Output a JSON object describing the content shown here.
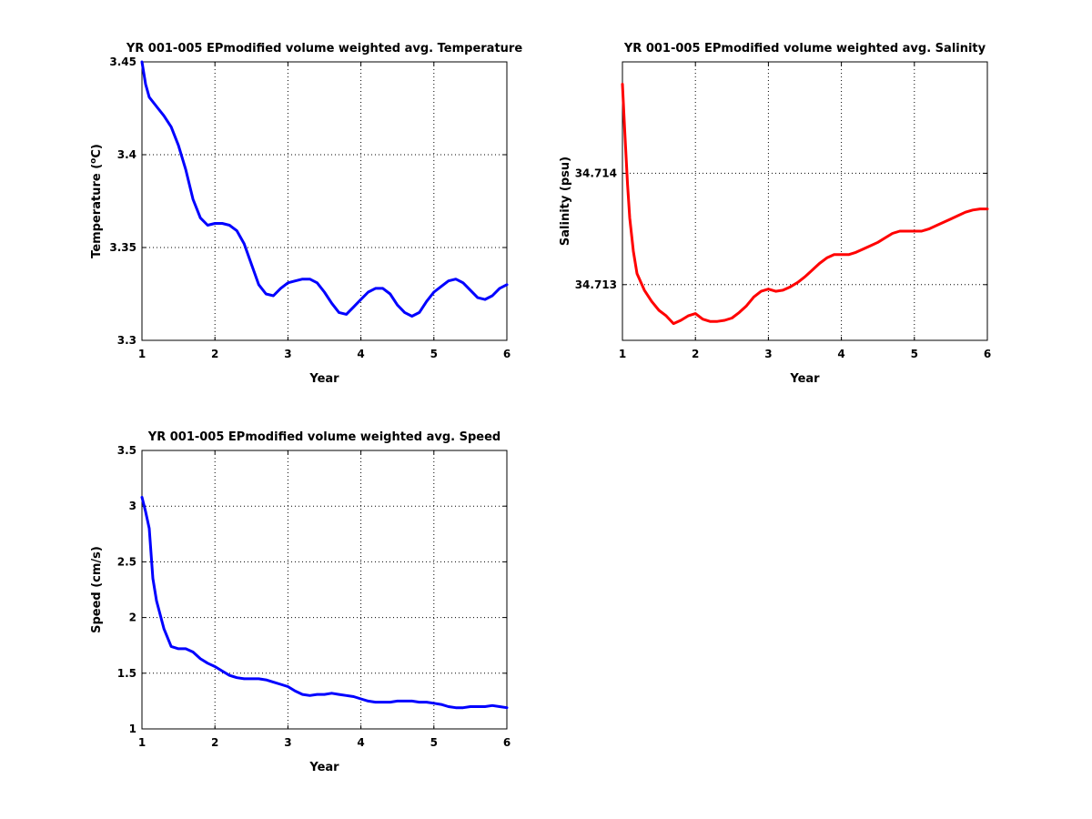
{
  "chart_data": [
    {
      "type": "line",
      "title": "YR 001-005 EPmodified volume weighted avg. Temperature",
      "xlabel": "Year",
      "ylabel": "Temperature (°C)",
      "ylabel_parts": {
        "pre": "Temperature (",
        "sup": "o",
        "post": "C)"
      },
      "xlim": [
        1,
        6
      ],
      "ylim": [
        3.3,
        3.45
      ],
      "xticks": [
        1,
        2,
        3,
        4,
        5,
        6
      ],
      "xtick_labels": [
        "1",
        "2",
        "3",
        "4",
        "5",
        "6"
      ],
      "yticks": [
        3.3,
        3.35,
        3.4,
        3.45
      ],
      "ytick_labels": [
        "3.3",
        "3.35",
        "3.4",
        "3.45"
      ],
      "grid": true,
      "series": [
        {
          "color": "#0000ff",
          "x": [
            1.0,
            1.05,
            1.1,
            1.2,
            1.3,
            1.4,
            1.5,
            1.6,
            1.7,
            1.8,
            1.9,
            2.0,
            2.1,
            2.2,
            2.3,
            2.4,
            2.5,
            2.6,
            2.7,
            2.8,
            2.9,
            3.0,
            3.1,
            3.2,
            3.3,
            3.4,
            3.5,
            3.6,
            3.7,
            3.8,
            3.9,
            4.0,
            4.1,
            4.2,
            4.3,
            4.4,
            4.5,
            4.6,
            4.7,
            4.8,
            4.9,
            5.0,
            5.1,
            5.2,
            5.3,
            5.4,
            5.5,
            5.6,
            5.7,
            5.8,
            5.9,
            6.0
          ],
          "y": [
            3.45,
            3.438,
            3.431,
            3.426,
            3.421,
            3.415,
            3.405,
            3.392,
            3.376,
            3.366,
            3.362,
            3.363,
            3.363,
            3.362,
            3.359,
            3.352,
            3.341,
            3.33,
            3.325,
            3.324,
            3.328,
            3.331,
            3.332,
            3.333,
            3.333,
            3.331,
            3.326,
            3.32,
            3.315,
            3.314,
            3.318,
            3.322,
            3.326,
            3.328,
            3.328,
            3.325,
            3.319,
            3.315,
            3.313,
            3.315,
            3.321,
            3.326,
            3.329,
            3.332,
            3.333,
            3.331,
            3.327,
            3.323,
            3.322,
            3.324,
            3.328,
            3.33
          ]
        }
      ]
    },
    {
      "type": "line",
      "title": "YR 001-005 EPmodified volume weighted avg. Salinity",
      "xlabel": "Year",
      "ylabel": "Salinity (psu)",
      "xlim": [
        1,
        6
      ],
      "ylim": [
        34.7125,
        34.715
      ],
      "xticks": [
        1,
        2,
        3,
        4,
        5,
        6
      ],
      "xtick_labels": [
        "1",
        "2",
        "3",
        "4",
        "5",
        "6"
      ],
      "yticks": [
        34.713,
        34.714
      ],
      "ytick_labels": [
        "34.713",
        "34.714"
      ],
      "grid": true,
      "series": [
        {
          "color": "#ff0000",
          "x": [
            1.0,
            1.03,
            1.07,
            1.1,
            1.15,
            1.2,
            1.3,
            1.4,
            1.5,
            1.6,
            1.7,
            1.8,
            1.9,
            2.0,
            2.1,
            2.2,
            2.3,
            2.4,
            2.5,
            2.6,
            2.7,
            2.8,
            2.9,
            3.0,
            3.1,
            3.2,
            3.3,
            3.4,
            3.5,
            3.6,
            3.7,
            3.8,
            3.9,
            4.0,
            4.1,
            4.2,
            4.3,
            4.4,
            4.5,
            4.6,
            4.7,
            4.8,
            4.9,
            5.0,
            5.1,
            5.2,
            5.3,
            5.4,
            5.5,
            5.6,
            5.7,
            5.8,
            5.9,
            6.0
          ],
          "y": [
            34.7148,
            34.7144,
            34.7139,
            34.7136,
            34.7133,
            34.7131,
            34.71295,
            34.71285,
            34.71277,
            34.71272,
            34.71265,
            34.71268,
            34.71272,
            34.71274,
            34.71269,
            34.71267,
            34.71267,
            34.71268,
            34.7127,
            34.71275,
            34.71281,
            34.71289,
            34.71294,
            34.71296,
            34.71294,
            34.71295,
            34.71298,
            34.71302,
            34.71307,
            34.71313,
            34.71319,
            34.71324,
            34.71327,
            34.71327,
            34.71327,
            34.71329,
            34.71332,
            34.71335,
            34.71338,
            34.71342,
            34.71346,
            34.71348,
            34.71348,
            34.71348,
            34.71348,
            34.7135,
            34.71353,
            34.71356,
            34.71359,
            34.71362,
            34.71365,
            34.71367,
            34.71368,
            34.71368
          ]
        }
      ]
    },
    {
      "type": "line",
      "title": "YR 001-005 EPmodified volume weighted avg. Speed",
      "xlabel": "Year",
      "ylabel": "Speed (cm/s)",
      "xlim": [
        1,
        6
      ],
      "ylim": [
        1,
        3.5
      ],
      "xticks": [
        1,
        2,
        3,
        4,
        5,
        6
      ],
      "xtick_labels": [
        "1",
        "2",
        "3",
        "4",
        "5",
        "6"
      ],
      "yticks": [
        1,
        1.5,
        2,
        2.5,
        3,
        3.5
      ],
      "ytick_labels": [
        "1",
        "1.5",
        "2",
        "2.5",
        "3",
        "3.5"
      ],
      "grid": true,
      "series": [
        {
          "color": "#0000ff",
          "x": [
            1.0,
            1.05,
            1.1,
            1.15,
            1.2,
            1.3,
            1.4,
            1.5,
            1.6,
            1.7,
            1.8,
            1.9,
            2.0,
            2.1,
            2.2,
            2.3,
            2.4,
            2.5,
            2.6,
            2.7,
            2.8,
            2.9,
            3.0,
            3.1,
            3.2,
            3.3,
            3.4,
            3.5,
            3.6,
            3.7,
            3.8,
            3.9,
            4.0,
            4.1,
            4.2,
            4.3,
            4.4,
            4.5,
            4.6,
            4.7,
            4.8,
            4.9,
            5.0,
            5.1,
            5.2,
            5.3,
            5.4,
            5.5,
            5.6,
            5.7,
            5.8,
            5.9,
            6.0
          ],
          "y": [
            3.08,
            2.95,
            2.8,
            2.35,
            2.15,
            1.9,
            1.74,
            1.72,
            1.72,
            1.69,
            1.63,
            1.59,
            1.56,
            1.52,
            1.48,
            1.46,
            1.45,
            1.45,
            1.45,
            1.44,
            1.42,
            1.4,
            1.38,
            1.34,
            1.31,
            1.3,
            1.31,
            1.31,
            1.32,
            1.31,
            1.3,
            1.29,
            1.27,
            1.25,
            1.24,
            1.24,
            1.24,
            1.25,
            1.25,
            1.25,
            1.24,
            1.24,
            1.23,
            1.22,
            1.2,
            1.19,
            1.19,
            1.2,
            1.2,
            1.2,
            1.21,
            1.2,
            1.19
          ]
        }
      ]
    }
  ]
}
